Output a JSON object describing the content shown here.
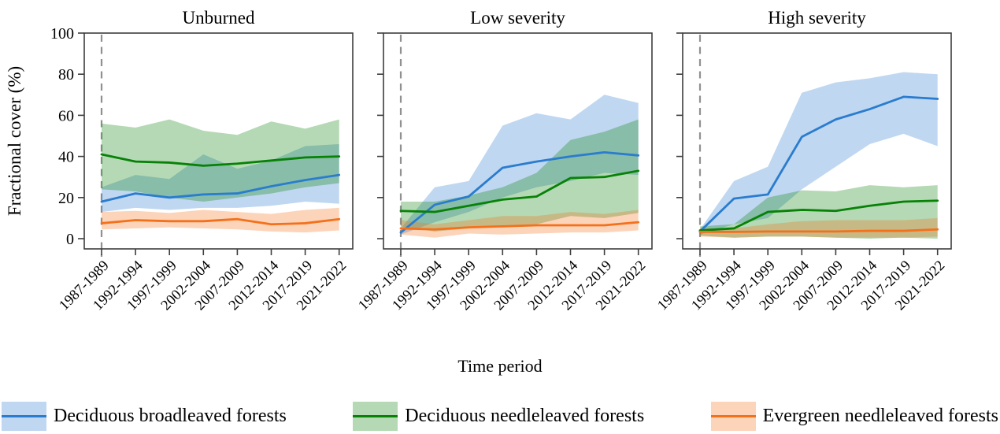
{
  "figure": {
    "y_axis_label": "Fractional cover (%)",
    "x_axis_label": "Time period"
  },
  "legend": {
    "items": [
      {
        "label": "Deciduous broadleaved forests",
        "line_color": "#2a7cce",
        "fill_color": "#2a7cce"
      },
      {
        "label": "Deciduous needleleaved forests",
        "line_color": "#078207",
        "fill_color": "#078207"
      },
      {
        "label": "Evergreen needleleaved forests",
        "line_color": "#f4711c",
        "fill_color": "#f4711c"
      }
    ],
    "band_opacity": 0.3
  },
  "chart_data": [
    {
      "type": "line",
      "title": "Unburned",
      "categories": [
        "1987-1989",
        "1992-1994",
        "1997-1999",
        "2002-2004",
        "2007-2009",
        "2012-2014",
        "2017-2019",
        "2021-2022"
      ],
      "ylim": [
        0,
        100
      ],
      "yticks": [
        0,
        20,
        40,
        60,
        80,
        100
      ],
      "baseline_marker_x": "1987-1989",
      "grid": false,
      "series": [
        {
          "name": "Deciduous broadleaved forests",
          "color": "#2a7cce",
          "values": [
            18,
            22,
            20,
            21.5,
            22,
            25.5,
            28.5,
            31
          ],
          "lower": [
            13,
            15,
            14,
            15,
            15,
            16,
            18,
            17
          ],
          "upper": [
            25,
            31,
            29,
            41,
            34,
            38,
            45,
            46
          ]
        },
        {
          "name": "Deciduous needleleaved forests",
          "color": "#078207",
          "values": [
            41,
            37.5,
            37,
            35.5,
            36.5,
            38,
            39.5,
            40
          ],
          "lower": [
            24,
            23,
            20,
            18,
            20,
            22,
            25,
            27
          ],
          "upper": [
            56,
            54,
            58,
            52.5,
            50.5,
            57,
            53.5,
            58
          ]
        },
        {
          "name": "Evergreen needleleaved forests",
          "color": "#f4711c",
          "values": [
            7.5,
            9,
            8.5,
            8.5,
            9.5,
            7,
            7.5,
            9.5
          ],
          "lower": [
            4.5,
            5,
            5.5,
            5,
            4.5,
            3.5,
            3,
            4
          ],
          "upper": [
            13,
            13.5,
            12.5,
            14,
            13,
            12,
            14,
            15
          ]
        }
      ]
    },
    {
      "type": "line",
      "title": "Low severity",
      "categories": [
        "1987-1989",
        "1992-1994",
        "1997-1999",
        "2002-2004",
        "2007-2009",
        "2012-2014",
        "2017-2019",
        "2021-2022"
      ],
      "ylim": [
        0,
        100
      ],
      "yticks": [
        0,
        20,
        40,
        60,
        80,
        100
      ],
      "baseline_marker_x": "1987-1989",
      "grid": false,
      "series": [
        {
          "name": "Deciduous broadleaved forests",
          "color": "#2a7cce",
          "values": [
            3,
            16.5,
            20.5,
            34.5,
            37.5,
            40,
            42,
            40.5
          ],
          "lower": [
            2,
            8,
            13,
            20,
            25,
            28,
            32,
            31
          ],
          "upper": [
            5,
            25,
            28,
            55,
            61,
            58,
            70,
            66
          ]
        },
        {
          "name": "Deciduous needleleaved forests",
          "color": "#078207",
          "values": [
            13.5,
            13,
            16,
            19,
            20.5,
            29.5,
            30,
            33
          ],
          "lower": [
            6,
            3.5,
            5,
            6,
            7,
            11,
            10,
            12.5
          ],
          "upper": [
            18,
            18,
            21,
            25,
            32,
            48,
            52,
            58
          ]
        },
        {
          "name": "Evergreen needleleaved forests",
          "color": "#f4711c",
          "values": [
            5,
            4.5,
            5.5,
            6,
            6.5,
            6.5,
            6.5,
            8
          ],
          "lower": [
            2,
            0.5,
            2.5,
            2,
            2.5,
            3,
            3,
            4
          ],
          "upper": [
            9,
            7,
            9,
            11,
            11,
            13,
            12,
            14
          ]
        }
      ]
    },
    {
      "type": "line",
      "title": "High severity",
      "categories": [
        "1987-1989",
        "1992-1994",
        "1997-1999",
        "2002-2004",
        "2007-2009",
        "2012-2014",
        "2017-2019",
        "2021-2022"
      ],
      "ylim": [
        0,
        100
      ],
      "yticks": [
        0,
        20,
        40,
        60,
        80,
        100
      ],
      "baseline_marker_x": "1987-1989",
      "grid": false,
      "series": [
        {
          "name": "Deciduous broadleaved forests",
          "color": "#2a7cce",
          "values": [
            3.5,
            19.5,
            21.5,
            49.5,
            58,
            63,
            69,
            68
          ],
          "lower": [
            2,
            7,
            10,
            24,
            35,
            46,
            51,
            45
          ],
          "upper": [
            4.5,
            28,
            35,
            71,
            76,
            78,
            81,
            80
          ]
        },
        {
          "name": "Deciduous needleleaved forests",
          "color": "#078207",
          "values": [
            4,
            5,
            13,
            14,
            13.5,
            16,
            18,
            18.5
          ],
          "lower": [
            1.5,
            0.5,
            1,
            1,
            0.5,
            0,
            0.5,
            0
          ],
          "upper": [
            6,
            7,
            20,
            23.5,
            23,
            26,
            25,
            26
          ]
        },
        {
          "name": "Evergreen needleleaved forests",
          "color": "#f4711c",
          "values": [
            3.3,
            3.3,
            3.5,
            3.5,
            3.5,
            3.8,
            3.8,
            4.5
          ],
          "lower": [
            1,
            0.5,
            1,
            1,
            0.5,
            0.5,
            0.5,
            1
          ],
          "upper": [
            5,
            5,
            7,
            8.5,
            9,
            9,
            9,
            10
          ]
        }
      ]
    }
  ]
}
